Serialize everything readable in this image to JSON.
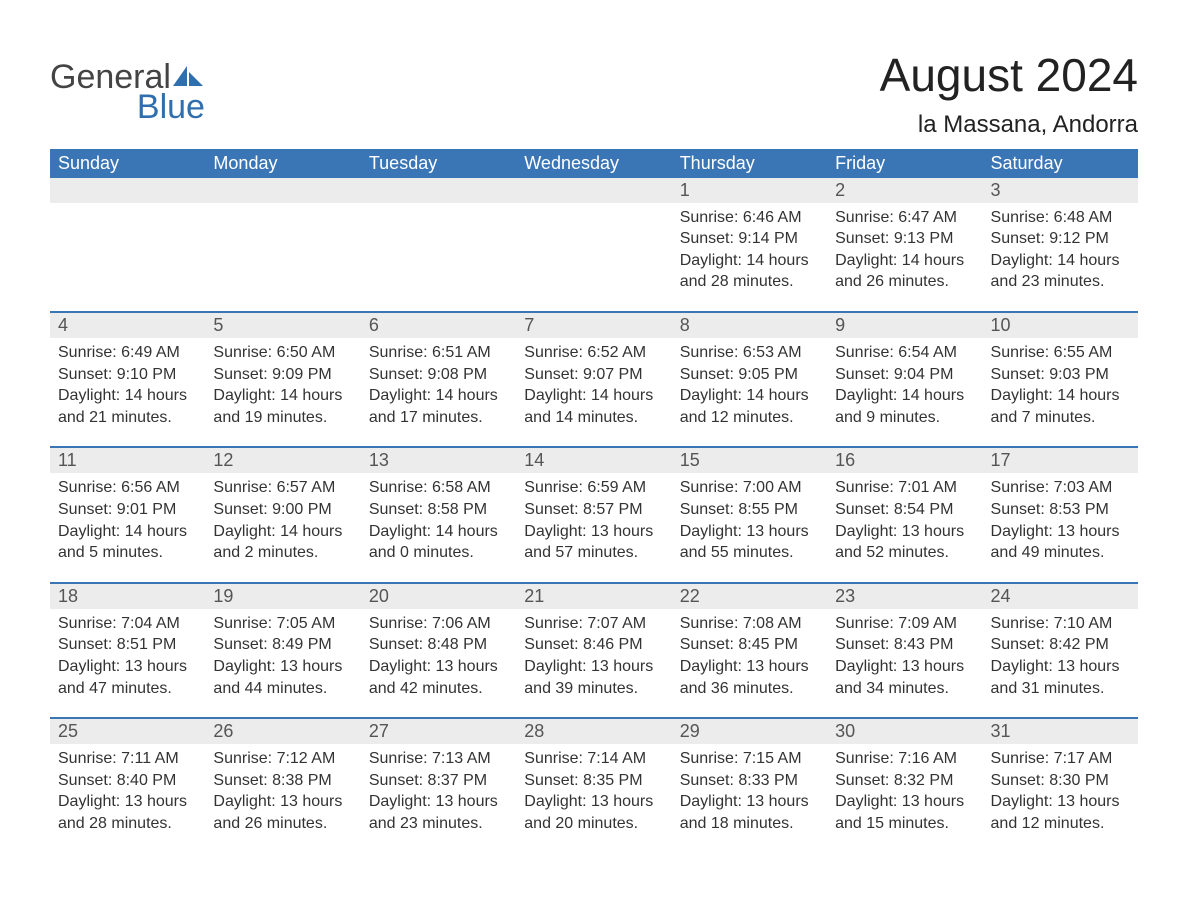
{
  "brand": {
    "word1": "General",
    "word2": "Blue",
    "sail_color": "#2f6fae"
  },
  "title": "August 2024",
  "location": "la Massana, Andorra",
  "colors": {
    "header_bg": "#3a76b6",
    "header_text": "#ffffff",
    "daynum_bg": "#ececec",
    "daynum_text": "#555555",
    "row_border": "#3a76b6",
    "body_text": "#333333",
    "title_text": "#222222",
    "brand_gray": "#444444",
    "brand_blue": "#2f6fae",
    "page_bg": "#ffffff"
  },
  "fontsizes": {
    "title": 46,
    "subtitle": 24,
    "weekday": 18,
    "daynum": 18,
    "details": 16,
    "logo": 34
  },
  "weekdays": [
    "Sunday",
    "Monday",
    "Tuesday",
    "Wednesday",
    "Thursday",
    "Friday",
    "Saturday"
  ],
  "weeks": [
    [
      null,
      null,
      null,
      null,
      {
        "n": "1",
        "sunrise": "6:46 AM",
        "sunset": "9:14 PM",
        "dl": "14 hours and 28 minutes."
      },
      {
        "n": "2",
        "sunrise": "6:47 AM",
        "sunset": "9:13 PM",
        "dl": "14 hours and 26 minutes."
      },
      {
        "n": "3",
        "sunrise": "6:48 AM",
        "sunset": "9:12 PM",
        "dl": "14 hours and 23 minutes."
      }
    ],
    [
      {
        "n": "4",
        "sunrise": "6:49 AM",
        "sunset": "9:10 PM",
        "dl": "14 hours and 21 minutes."
      },
      {
        "n": "5",
        "sunrise": "6:50 AM",
        "sunset": "9:09 PM",
        "dl": "14 hours and 19 minutes."
      },
      {
        "n": "6",
        "sunrise": "6:51 AM",
        "sunset": "9:08 PM",
        "dl": "14 hours and 17 minutes."
      },
      {
        "n": "7",
        "sunrise": "6:52 AM",
        "sunset": "9:07 PM",
        "dl": "14 hours and 14 minutes."
      },
      {
        "n": "8",
        "sunrise": "6:53 AM",
        "sunset": "9:05 PM",
        "dl": "14 hours and 12 minutes."
      },
      {
        "n": "9",
        "sunrise": "6:54 AM",
        "sunset": "9:04 PM",
        "dl": "14 hours and 9 minutes."
      },
      {
        "n": "10",
        "sunrise": "6:55 AM",
        "sunset": "9:03 PM",
        "dl": "14 hours and 7 minutes."
      }
    ],
    [
      {
        "n": "11",
        "sunrise": "6:56 AM",
        "sunset": "9:01 PM",
        "dl": "14 hours and 5 minutes."
      },
      {
        "n": "12",
        "sunrise": "6:57 AM",
        "sunset": "9:00 PM",
        "dl": "14 hours and 2 minutes."
      },
      {
        "n": "13",
        "sunrise": "6:58 AM",
        "sunset": "8:58 PM",
        "dl": "14 hours and 0 minutes."
      },
      {
        "n": "14",
        "sunrise": "6:59 AM",
        "sunset": "8:57 PM",
        "dl": "13 hours and 57 minutes."
      },
      {
        "n": "15",
        "sunrise": "7:00 AM",
        "sunset": "8:55 PM",
        "dl": "13 hours and 55 minutes."
      },
      {
        "n": "16",
        "sunrise": "7:01 AM",
        "sunset": "8:54 PM",
        "dl": "13 hours and 52 minutes."
      },
      {
        "n": "17",
        "sunrise": "7:03 AM",
        "sunset": "8:53 PM",
        "dl": "13 hours and 49 minutes."
      }
    ],
    [
      {
        "n": "18",
        "sunrise": "7:04 AM",
        "sunset": "8:51 PM",
        "dl": "13 hours and 47 minutes."
      },
      {
        "n": "19",
        "sunrise": "7:05 AM",
        "sunset": "8:49 PM",
        "dl": "13 hours and 44 minutes."
      },
      {
        "n": "20",
        "sunrise": "7:06 AM",
        "sunset": "8:48 PM",
        "dl": "13 hours and 42 minutes."
      },
      {
        "n": "21",
        "sunrise": "7:07 AM",
        "sunset": "8:46 PM",
        "dl": "13 hours and 39 minutes."
      },
      {
        "n": "22",
        "sunrise": "7:08 AM",
        "sunset": "8:45 PM",
        "dl": "13 hours and 36 minutes."
      },
      {
        "n": "23",
        "sunrise": "7:09 AM",
        "sunset": "8:43 PM",
        "dl": "13 hours and 34 minutes."
      },
      {
        "n": "24",
        "sunrise": "7:10 AM",
        "sunset": "8:42 PM",
        "dl": "13 hours and 31 minutes."
      }
    ],
    [
      {
        "n": "25",
        "sunrise": "7:11 AM",
        "sunset": "8:40 PM",
        "dl": "13 hours and 28 minutes."
      },
      {
        "n": "26",
        "sunrise": "7:12 AM",
        "sunset": "8:38 PM",
        "dl": "13 hours and 26 minutes."
      },
      {
        "n": "27",
        "sunrise": "7:13 AM",
        "sunset": "8:37 PM",
        "dl": "13 hours and 23 minutes."
      },
      {
        "n": "28",
        "sunrise": "7:14 AM",
        "sunset": "8:35 PM",
        "dl": "13 hours and 20 minutes."
      },
      {
        "n": "29",
        "sunrise": "7:15 AM",
        "sunset": "8:33 PM",
        "dl": "13 hours and 18 minutes."
      },
      {
        "n": "30",
        "sunrise": "7:16 AM",
        "sunset": "8:32 PM",
        "dl": "13 hours and 15 minutes."
      },
      {
        "n": "31",
        "sunrise": "7:17 AM",
        "sunset": "8:30 PM",
        "dl": "13 hours and 12 minutes."
      }
    ]
  ],
  "labels": {
    "sunrise": "Sunrise:",
    "sunset": "Sunset:",
    "daylight": "Daylight:"
  }
}
